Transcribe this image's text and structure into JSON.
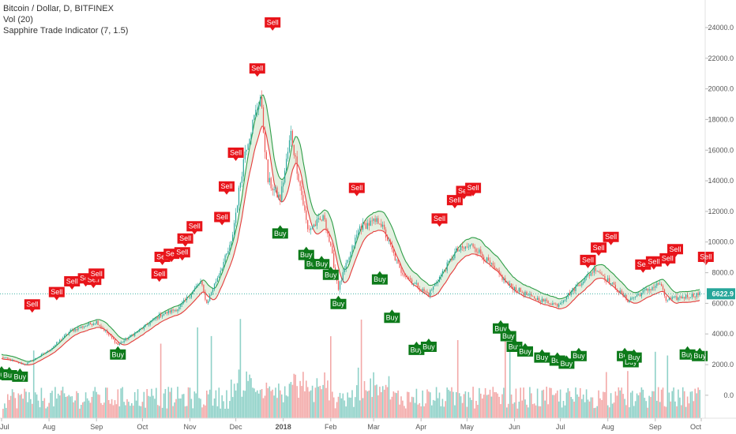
{
  "header": {
    "symbol_line": "Bitcoin / Dollar, D, BITFINEX",
    "volume_line": "Vol (20)",
    "indicator_line": "Sapphire Trade Indicator (7, 1.5)"
  },
  "colors": {
    "up": "#26a69a",
    "down": "#ef5350",
    "sell": "#e8141a",
    "buy": "#0d7a1a",
    "band_upper": "#2e9e48",
    "band_lower": "#e63b3b",
    "band_fill": "#d9ead3",
    "band_fill_red": "#f6d5d5",
    "price_line": "#26a69a",
    "grid": "#eeeeee"
  },
  "chart_data": {
    "type": "candlestick",
    "x_axis_labels": [
      "Jul",
      "Aug",
      "Sep",
      "Oct",
      "Nov",
      "Dec",
      "2018",
      "Feb",
      "Mar",
      "Apr",
      "May",
      "Jun",
      "Jul",
      "Aug",
      "Sep",
      "Oct"
    ],
    "x_axis_dates": [
      "2017-07-01",
      "2017-08-01",
      "2017-09-01",
      "2017-10-01",
      "2017-11-01",
      "2017-12-01",
      "2018-01-01",
      "2018-02-01",
      "2018-03-01",
      "2018-04-01",
      "2018-05-01",
      "2018-06-01",
      "2018-07-01",
      "2018-08-01",
      "2018-09-01",
      "2018-10-01"
    ],
    "y_ticks": [
      0,
      2000,
      4000,
      6000,
      8000,
      10000,
      12000,
      14000,
      16000,
      18000,
      20000,
      22000,
      24000
    ],
    "y_tick_labels": [
      "0.0",
      "2000.0",
      "4000.0",
      "6000.0",
      "8000.0",
      "10000.0",
      "12000.0",
      "14000.0",
      "16000.0",
      "18000.0",
      "20000.0",
      "22000.0",
      "24000.0"
    ],
    "ylim": [
      -1500,
      25800
    ],
    "last_price": 6622.9,
    "last_price_label": "6622.9",
    "price_path": [
      [
        "2017-07-01",
        2500
      ],
      [
        "2017-07-16",
        2000
      ],
      [
        "2017-07-31",
        2850
      ],
      [
        "2017-08-15",
        4200
      ],
      [
        "2017-09-01",
        4800
      ],
      [
        "2017-09-15",
        3300
      ],
      [
        "2017-09-30",
        4300
      ],
      [
        "2017-10-12",
        5200
      ],
      [
        "2017-10-25",
        5700
      ],
      [
        "2017-11-08",
        7400
      ],
      [
        "2017-11-12",
        6000
      ],
      [
        "2017-11-28",
        9900
      ],
      [
        "2017-12-07",
        16000
      ],
      [
        "2017-12-17",
        19500
      ],
      [
        "2017-12-22",
        14000
      ],
      [
        "2017-12-30",
        12800
      ],
      [
        "2018-01-06",
        17100
      ],
      [
        "2018-01-17",
        10800
      ],
      [
        "2018-01-28",
        11600
      ],
      [
        "2018-02-06",
        7000
      ],
      [
        "2018-02-20",
        11000
      ],
      [
        "2018-03-05",
        11400
      ],
      [
        "2018-03-18",
        8200
      ],
      [
        "2018-04-01",
        6900
      ],
      [
        "2018-04-06",
        6600
      ],
      [
        "2018-04-24",
        9400
      ],
      [
        "2018-05-05",
        9800
      ],
      [
        "2018-05-28",
        7200
      ],
      [
        "2018-06-12",
        6400
      ],
      [
        "2018-06-29",
        5900
      ],
      [
        "2018-07-24",
        8300
      ],
      [
        "2018-08-14",
        6200
      ],
      [
        "2018-09-04",
        7300
      ],
      [
        "2018-09-08",
        6200
      ],
      [
        "2018-09-30",
        6622
      ]
    ],
    "signals": [
      {
        "type": "Buy",
        "date": "2017-07-01",
        "price": 1900
      },
      {
        "type": "Buy",
        "date": "2017-07-06",
        "price": 1850
      },
      {
        "type": "Buy",
        "date": "2017-07-13",
        "price": 1750
      },
      {
        "type": "Sell",
        "date": "2017-07-21",
        "price": 5600
      },
      {
        "type": "Sell",
        "date": "2017-08-06",
        "price": 6400
      },
      {
        "type": "Sell",
        "date": "2017-08-16",
        "price": 7100
      },
      {
        "type": "Sell",
        "date": "2017-08-25",
        "price": 7300
      },
      {
        "type": "Sell",
        "date": "2017-08-30",
        "price": 7200
      },
      {
        "type": "Sell",
        "date": "2017-09-01",
        "price": 7600
      },
      {
        "type": "Buy",
        "date": "2017-09-15",
        "price": 3200
      },
      {
        "type": "Sell",
        "date": "2017-10-12",
        "price": 7600
      },
      {
        "type": "Sell",
        "date": "2017-10-14",
        "price": 8700
      },
      {
        "type": "Sell",
        "date": "2017-10-20",
        "price": 8900
      },
      {
        "type": "Sell",
        "date": "2017-10-27",
        "price": 9000
      },
      {
        "type": "Sell",
        "date": "2017-10-29",
        "price": 9900
      },
      {
        "type": "Sell",
        "date": "2017-11-04",
        "price": 10700
      },
      {
        "type": "Sell",
        "date": "2017-11-22",
        "price": 11300
      },
      {
        "type": "Sell",
        "date": "2017-11-25",
        "price": 13300
      },
      {
        "type": "Sell",
        "date": "2017-12-01",
        "price": 15500
      },
      {
        "type": "Sell",
        "date": "2017-12-15",
        "price": 21000
      },
      {
        "type": "Sell",
        "date": "2017-12-25",
        "price": 24000
      },
      {
        "type": "Buy",
        "date": "2017-12-30",
        "price": 11100
      },
      {
        "type": "Buy",
        "date": "2018-01-16",
        "price": 9700
      },
      {
        "type": "Buy",
        "date": "2018-01-20",
        "price": 9100
      },
      {
        "type": "Buy",
        "date": "2018-01-26",
        "price": 9100
      },
      {
        "type": "Buy",
        "date": "2018-02-01",
        "price": 8400
      },
      {
        "type": "Buy",
        "date": "2018-02-06",
        "price": 6500
      },
      {
        "type": "Sell",
        "date": "2018-02-18",
        "price": 13200
      },
      {
        "type": "Buy",
        "date": "2018-03-05",
        "price": 8100
      },
      {
        "type": "Buy",
        "date": "2018-03-13",
        "price": 5600
      },
      {
        "type": "Buy",
        "date": "2018-03-29",
        "price": 3500
      },
      {
        "type": "Buy",
        "date": "2018-04-06",
        "price": 3700
      },
      {
        "type": "Sell",
        "date": "2018-04-13",
        "price": 11200
      },
      {
        "type": "Sell",
        "date": "2018-04-23",
        "price": 12400
      },
      {
        "type": "Sell",
        "date": "2018-04-29",
        "price": 13000
      },
      {
        "type": "Sell",
        "date": "2018-05-05",
        "price": 13200
      },
      {
        "type": "Buy",
        "date": "2018-05-23",
        "price": 4900
      },
      {
        "type": "Buy",
        "date": "2018-05-28",
        "price": 4400
      },
      {
        "type": "Buy",
        "date": "2018-06-01",
        "price": 3700
      },
      {
        "type": "Buy",
        "date": "2018-06-08",
        "price": 3400
      },
      {
        "type": "Buy",
        "date": "2018-06-19",
        "price": 3000
      },
      {
        "type": "Buy",
        "date": "2018-06-29",
        "price": 2800
      },
      {
        "type": "Buy",
        "date": "2018-07-05",
        "price": 2600
      },
      {
        "type": "Buy",
        "date": "2018-07-13",
        "price": 3100
      },
      {
        "type": "Sell",
        "date": "2018-07-19",
        "price": 8500
      },
      {
        "type": "Sell",
        "date": "2018-07-26",
        "price": 9300
      },
      {
        "type": "Sell",
        "date": "2018-08-03",
        "price": 10000
      },
      {
        "type": "Buy",
        "date": "2018-08-12",
        "price": 3100
      },
      {
        "type": "Buy",
        "date": "2018-08-16",
        "price": 2700
      },
      {
        "type": "Buy",
        "date": "2018-08-18",
        "price": 3000
      },
      {
        "type": "Sell",
        "date": "2018-08-24",
        "price": 8200
      },
      {
        "type": "Sell",
        "date": "2018-08-31",
        "price": 8400
      },
      {
        "type": "Sell",
        "date": "2018-09-09",
        "price": 8600
      },
      {
        "type": "Sell",
        "date": "2018-09-14",
        "price": 9200
      },
      {
        "type": "Buy",
        "date": "2018-09-22",
        "price": 3200
      },
      {
        "type": "Buy",
        "date": "2018-09-30",
        "price": 3100
      },
      {
        "type": "Sell",
        "date": "2018-10-04",
        "price": 8700
      }
    ],
    "legend": "none",
    "grid": false
  }
}
